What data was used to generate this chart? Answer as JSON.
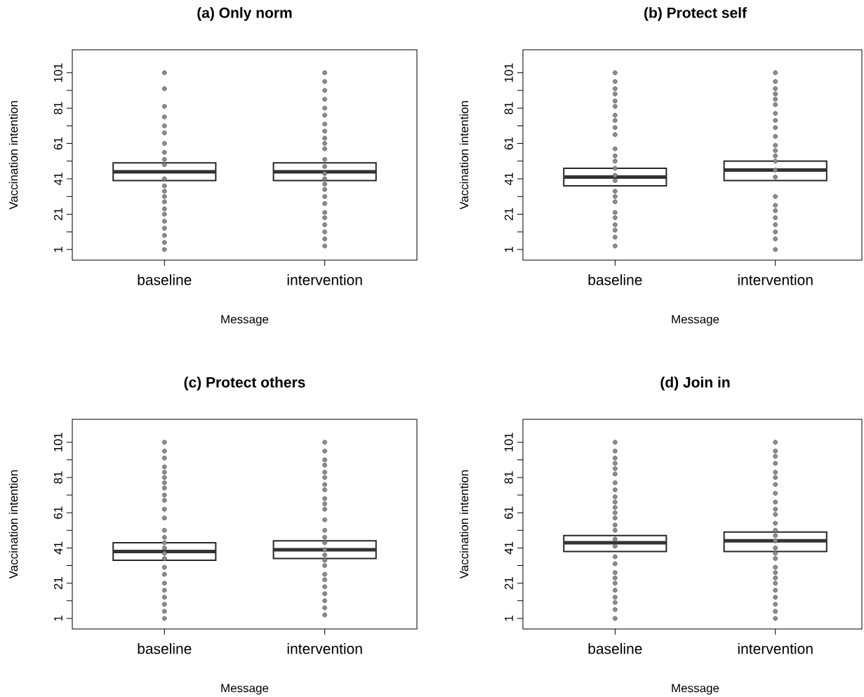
{
  "chart_data": [
    {
      "type": "box",
      "title": "(a) Only norm",
      "xlabel": "Message",
      "ylabel": "Vaccination intention",
      "categories": [
        "baseline",
        "intervention"
      ],
      "boxes": [
        {
          "low": 40,
          "q1": 40,
          "median": 45,
          "q3": 50,
          "high": 50
        },
        {
          "low": 40,
          "q1": 40,
          "median": 45,
          "q3": 50,
          "high": 50
        }
      ],
      "series": [
        {
          "type": "scatter",
          "color": "#8c8c8c",
          "x": [
            "baseline",
            "baseline",
            "baseline",
            "baseline",
            "baseline",
            "baseline",
            "baseline",
            "baseline",
            "baseline",
            "baseline",
            "baseline",
            "baseline",
            "baseline",
            "baseline",
            "baseline",
            "baseline",
            "baseline",
            "baseline",
            "baseline",
            "baseline",
            "baseline",
            "baseline"
          ],
          "values": [
            101,
            92,
            82,
            76,
            71,
            67,
            61,
            56,
            52,
            49,
            41,
            37,
            34,
            31,
            28,
            24,
            21,
            17,
            13,
            9,
            5,
            1
          ]
        },
        {
          "type": "scatter",
          "color": "#8c8c8c",
          "x": [
            "intervention",
            "intervention",
            "intervention",
            "intervention",
            "intervention",
            "intervention",
            "intervention",
            "intervention",
            "intervention",
            "intervention",
            "intervention",
            "intervention",
            "intervention",
            "intervention",
            "intervention",
            "intervention",
            "intervention",
            "intervention",
            "intervention",
            "intervention",
            "intervention",
            "intervention",
            "intervention",
            "intervention",
            "intervention"
          ],
          "values": [
            101,
            96,
            91,
            86,
            81,
            77,
            72,
            68,
            64,
            61,
            58,
            52,
            48,
            44,
            41,
            38,
            35,
            31,
            27,
            22,
            19,
            15,
            11,
            7,
            3
          ]
        }
      ],
      "ylim": [
        -5,
        114
      ],
      "yticks": [
        1,
        {
          "value": 11,
          "label": null
        },
        21,
        {
          "value": 31,
          "label": null
        },
        41,
        {
          "value": 51,
          "label": null
        },
        61,
        {
          "value": 71,
          "label": null
        },
        81,
        {
          "value": 91,
          "label": null
        },
        101
      ],
      "marker": "circle"
    },
    {
      "type": "box",
      "title": "(b) Protect self",
      "xlabel": "Message",
      "ylabel": "Vaccination intention",
      "categories": [
        "baseline",
        "intervention"
      ],
      "boxes": [
        {
          "low": 37,
          "q1": 37,
          "median": 42,
          "q3": 47,
          "high": 47
        },
        {
          "low": 40,
          "q1": 40,
          "median": 46,
          "q3": 51,
          "high": 51
        }
      ],
      "series": [
        {
          "type": "scatter",
          "color": "#8c8c8c",
          "x": [
            "baseline",
            "baseline",
            "baseline",
            "baseline",
            "baseline",
            "baseline",
            "baseline",
            "baseline",
            "baseline",
            "baseline",
            "baseline",
            "baseline",
            "baseline",
            "baseline",
            "baseline",
            "baseline",
            "baseline",
            "baseline",
            "baseline",
            "baseline",
            "baseline",
            "baseline",
            "baseline",
            "baseline",
            "baseline"
          ],
          "values": [
            101,
            96,
            92,
            89,
            85,
            82,
            77,
            74,
            70,
            66,
            58,
            54,
            51,
            47,
            43,
            40,
            34,
            31,
            28,
            22,
            19,
            15,
            12,
            8,
            3
          ]
        },
        {
          "type": "scatter",
          "color": "#8c8c8c",
          "x": [
            "intervention",
            "intervention",
            "intervention",
            "intervention",
            "intervention",
            "intervention",
            "intervention",
            "intervention",
            "intervention",
            "intervention",
            "intervention",
            "intervention",
            "intervention",
            "intervention",
            "intervention",
            "intervention",
            "intervention",
            "intervention",
            "intervention",
            "intervention",
            "intervention",
            "intervention",
            "intervention",
            "intervention"
          ],
          "values": [
            101,
            96,
            92,
            89,
            86,
            83,
            78,
            74,
            70,
            65,
            60,
            57,
            54,
            51,
            46,
            42,
            31,
            26,
            23,
            19,
            15,
            11,
            7,
            1
          ]
        }
      ],
      "ylim": [
        -5,
        114
      ],
      "yticks": [
        1,
        {
          "value": 11,
          "label": null
        },
        21,
        {
          "value": 31,
          "label": null
        },
        41,
        {
          "value": 51,
          "label": null
        },
        61,
        {
          "value": 71,
          "label": null
        },
        81,
        {
          "value": 91,
          "label": null
        },
        101
      ],
      "marker": "circle"
    },
    {
      "type": "box",
      "title": "(c) Protect others",
      "xlabel": "Message",
      "ylabel": "Vaccination intention",
      "categories": [
        "baseline",
        "intervention"
      ],
      "boxes": [
        {
          "low": 34,
          "q1": 34,
          "median": 39,
          "q3": 44,
          "high": 44
        },
        {
          "low": 35,
          "q1": 35,
          "median": 40,
          "q3": 45,
          "high": 45
        }
      ],
      "series": [
        {
          "type": "scatter",
          "color": "#8c8c8c",
          "x": [
            "baseline",
            "baseline",
            "baseline",
            "baseline",
            "baseline",
            "baseline",
            "baseline",
            "baseline",
            "baseline",
            "baseline",
            "baseline",
            "baseline",
            "baseline",
            "baseline",
            "baseline",
            "baseline",
            "baseline",
            "baseline",
            "baseline",
            "baseline",
            "baseline",
            "baseline",
            "baseline",
            "baseline",
            "baseline",
            "baseline"
          ],
          "values": [
            101,
            96,
            92,
            87,
            84,
            81,
            78,
            75,
            71,
            68,
            63,
            58,
            51,
            47,
            44,
            41,
            38,
            35,
            30,
            26,
            21,
            17,
            13,
            9,
            5,
            1
          ]
        },
        {
          "type": "scatter",
          "color": "#8c8c8c",
          "x": [
            "intervention",
            "intervention",
            "intervention",
            "intervention",
            "intervention",
            "intervention",
            "intervention",
            "intervention",
            "intervention",
            "intervention",
            "intervention",
            "intervention",
            "intervention",
            "intervention",
            "intervention",
            "intervention",
            "intervention",
            "intervention",
            "intervention",
            "intervention",
            "intervention",
            "intervention",
            "intervention",
            "intervention",
            "intervention",
            "intervention"
          ],
          "values": [
            101,
            96,
            91,
            88,
            84,
            81,
            77,
            74,
            69,
            66,
            63,
            57,
            51,
            47,
            44,
            40,
            37,
            34,
            31,
            26,
            23,
            19,
            15,
            11,
            7,
            3
          ]
        }
      ],
      "ylim": [
        -5,
        114
      ],
      "yticks": [
        1,
        {
          "value": 11,
          "label": null
        },
        21,
        {
          "value": 31,
          "label": null
        },
        41,
        {
          "value": 51,
          "label": null
        },
        61,
        {
          "value": 71,
          "label": null
        },
        81,
        {
          "value": 91,
          "label": null
        },
        101
      ],
      "marker": "circle"
    },
    {
      "type": "box",
      "title": "(d) Join in",
      "xlabel": "Message",
      "ylabel": "Vaccination intention",
      "categories": [
        "baseline",
        "intervention"
      ],
      "boxes": [
        {
          "low": 39,
          "q1": 39,
          "median": 44,
          "q3": 48,
          "high": 48
        },
        {
          "low": 39,
          "q1": 39,
          "median": 45,
          "q3": 50,
          "high": 50
        }
      ],
      "series": [
        {
          "type": "scatter",
          "color": "#8c8c8c",
          "x": [
            "baseline",
            "baseline",
            "baseline",
            "baseline",
            "baseline",
            "baseline",
            "baseline",
            "baseline",
            "baseline",
            "baseline",
            "baseline",
            "baseline",
            "baseline",
            "baseline",
            "baseline",
            "baseline",
            "baseline",
            "baseline",
            "baseline",
            "baseline",
            "baseline",
            "baseline",
            "baseline",
            "baseline",
            "baseline",
            "baseline",
            "baseline"
          ],
          "values": [
            101,
            96,
            92,
            89,
            86,
            83,
            78,
            74,
            70,
            67,
            64,
            61,
            58,
            54,
            51,
            46,
            42,
            36,
            32,
            27,
            24,
            21,
            17,
            13,
            10,
            6,
            1
          ]
        },
        {
          "type": "scatter",
          "color": "#8c8c8c",
          "x": [
            "intervention",
            "intervention",
            "intervention",
            "intervention",
            "intervention",
            "intervention",
            "intervention",
            "intervention",
            "intervention",
            "intervention",
            "intervention",
            "intervention",
            "intervention",
            "intervention",
            "intervention",
            "intervention",
            "intervention",
            "intervention",
            "intervention",
            "intervention",
            "intervention",
            "intervention",
            "intervention",
            "intervention",
            "intervention",
            "intervention",
            "intervention"
          ],
          "values": [
            101,
            96,
            93,
            89,
            84,
            81,
            77,
            72,
            67,
            63,
            60,
            55,
            51,
            48,
            45,
            41,
            38,
            35,
            30,
            27,
            24,
            21,
            17,
            13,
            9,
            5,
            1
          ]
        }
      ],
      "ylim": [
        -5,
        114
      ],
      "yticks": [
        1,
        {
          "value": 11,
          "label": null
        },
        21,
        {
          "value": 31,
          "label": null
        },
        41,
        {
          "value": 51,
          "label": null
        },
        61,
        {
          "value": 71,
          "label": null
        },
        81,
        {
          "value": 91,
          "label": null
        },
        101
      ],
      "marker": "circle"
    }
  ]
}
